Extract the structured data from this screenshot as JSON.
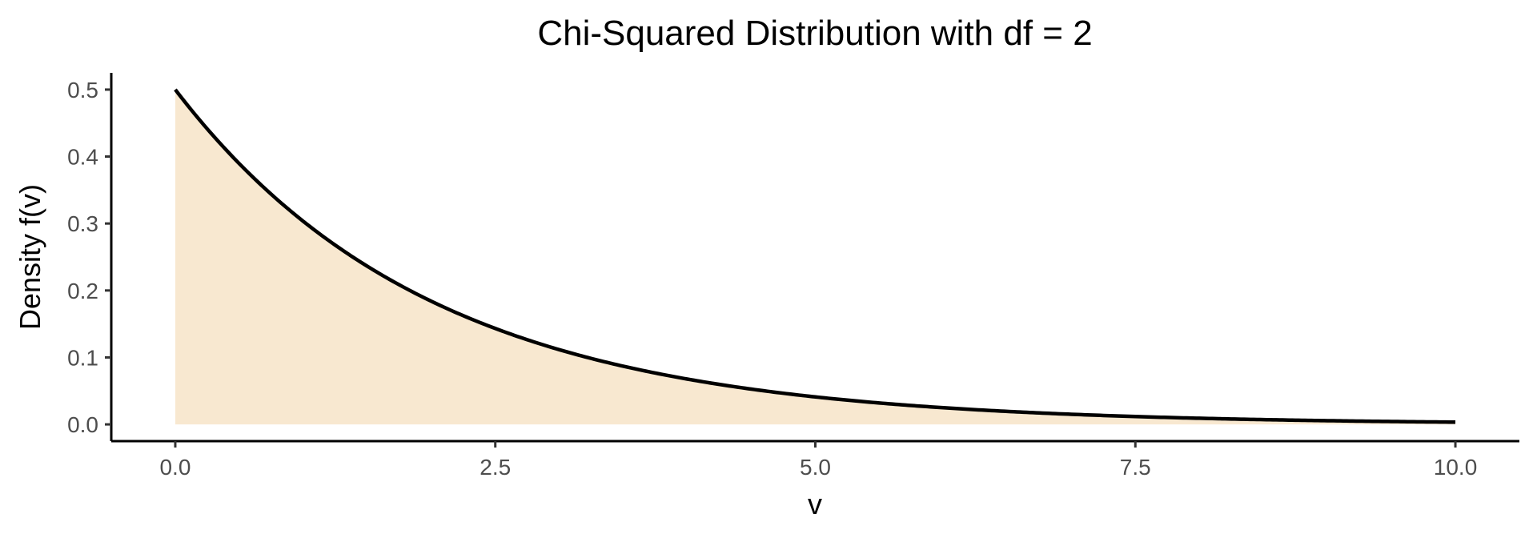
{
  "chart_data": {
    "type": "area",
    "title": "Chi-Squared Distribution with df = 2",
    "xlabel": "v",
    "ylabel": "Density f(v)",
    "df": 2,
    "xlim": [
      -0.5,
      10.5
    ],
    "ylim": [
      -0.025,
      0.525
    ],
    "x_ticks": [
      0,
      2.5,
      5,
      7.5,
      10
    ],
    "x_tick_labels": [
      "0.0",
      "2.5",
      "5.0",
      "7.5",
      "10.0"
    ],
    "y_ticks": [
      0,
      0.1,
      0.2,
      0.3,
      0.4,
      0.5
    ],
    "y_tick_labels": [
      "0.0",
      "0.1",
      "0.2",
      "0.3",
      "0.4",
      "0.5"
    ],
    "grid": false,
    "series": [
      {
        "name": "Density f(v)",
        "x": [
          0,
          0.25,
          0.5,
          0.75,
          1,
          1.25,
          1.5,
          1.75,
          2,
          2.5,
          3,
          3.5,
          4,
          4.5,
          5,
          5.5,
          6,
          6.5,
          7,
          7.5,
          8,
          8.5,
          9,
          9.5,
          10
        ],
        "y": [
          0.5,
          0.4412,
          0.3894,
          0.3436,
          0.3033,
          0.2676,
          0.2362,
          0.2084,
          0.1839,
          0.1433,
          0.1116,
          0.0869,
          0.0677,
          0.0527,
          0.041,
          0.032,
          0.0249,
          0.0194,
          0.0151,
          0.0118,
          0.0092,
          0.0071,
          0.0056,
          0.0043,
          0.0034
        ]
      }
    ],
    "colors": {
      "fill": "#f8e8d0",
      "line": "#000000",
      "axis": "#000000",
      "tick_label": "#4d4d4d"
    }
  }
}
